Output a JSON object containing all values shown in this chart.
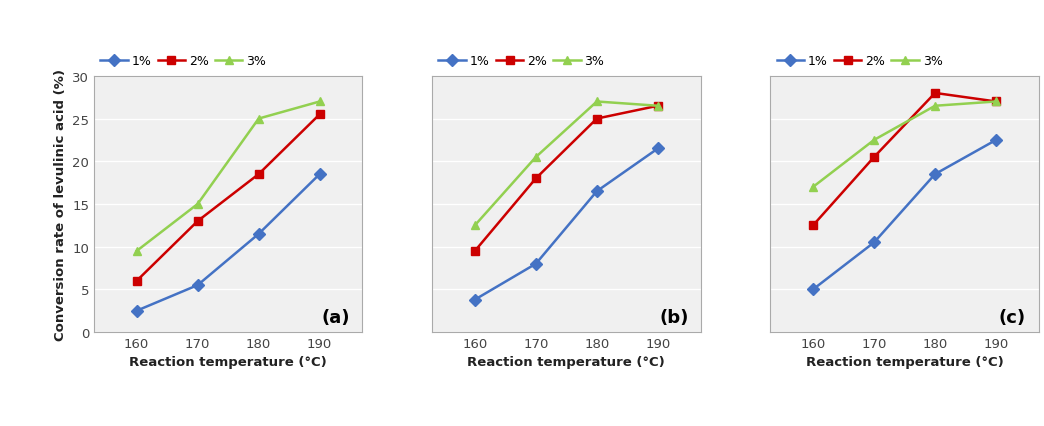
{
  "x": [
    160,
    170,
    180,
    190
  ],
  "panels": [
    {
      "label": "(a)",
      "series": {
        "1%": [
          2.5,
          5.5,
          11.5,
          18.5
        ],
        "2%": [
          6.0,
          13.0,
          18.5,
          25.5
        ],
        "3%": [
          9.5,
          15.0,
          25.0,
          27.0
        ]
      }
    },
    {
      "label": "(b)",
      "series": {
        "1%": [
          3.8,
          8.0,
          16.5,
          21.5
        ],
        "2%": [
          9.5,
          18.0,
          25.0,
          26.5
        ],
        "3%": [
          12.5,
          20.5,
          27.0,
          26.5
        ]
      }
    },
    {
      "label": "(c)",
      "series": {
        "1%": [
          5.0,
          10.5,
          18.5,
          22.5
        ],
        "2%": [
          12.5,
          20.5,
          28.0,
          27.0
        ],
        "3%": [
          17.0,
          22.5,
          26.5,
          27.0
        ]
      }
    }
  ],
  "colors": {
    "1%": "#4472C4",
    "2%": "#CC0000",
    "3%": "#92D050"
  },
  "markers": {
    "1%": "D",
    "2%": "s",
    "3%": "^"
  },
  "ylabel": "Conversion rate of levulinic acid (%)",
  "xlabel": "Reaction temperature (°C)",
  "ylim": [
    0,
    30
  ],
  "yticks": [
    0,
    5,
    10,
    15,
    20,
    25,
    30
  ],
  "xticks": [
    160,
    170,
    180,
    190
  ],
  "legend_labels": [
    "1%",
    "2%",
    "3%"
  ],
  "background_color": "#FFFFFF",
  "plot_bg_color": "#F0F0F0",
  "grid_color": "#FFFFFF"
}
